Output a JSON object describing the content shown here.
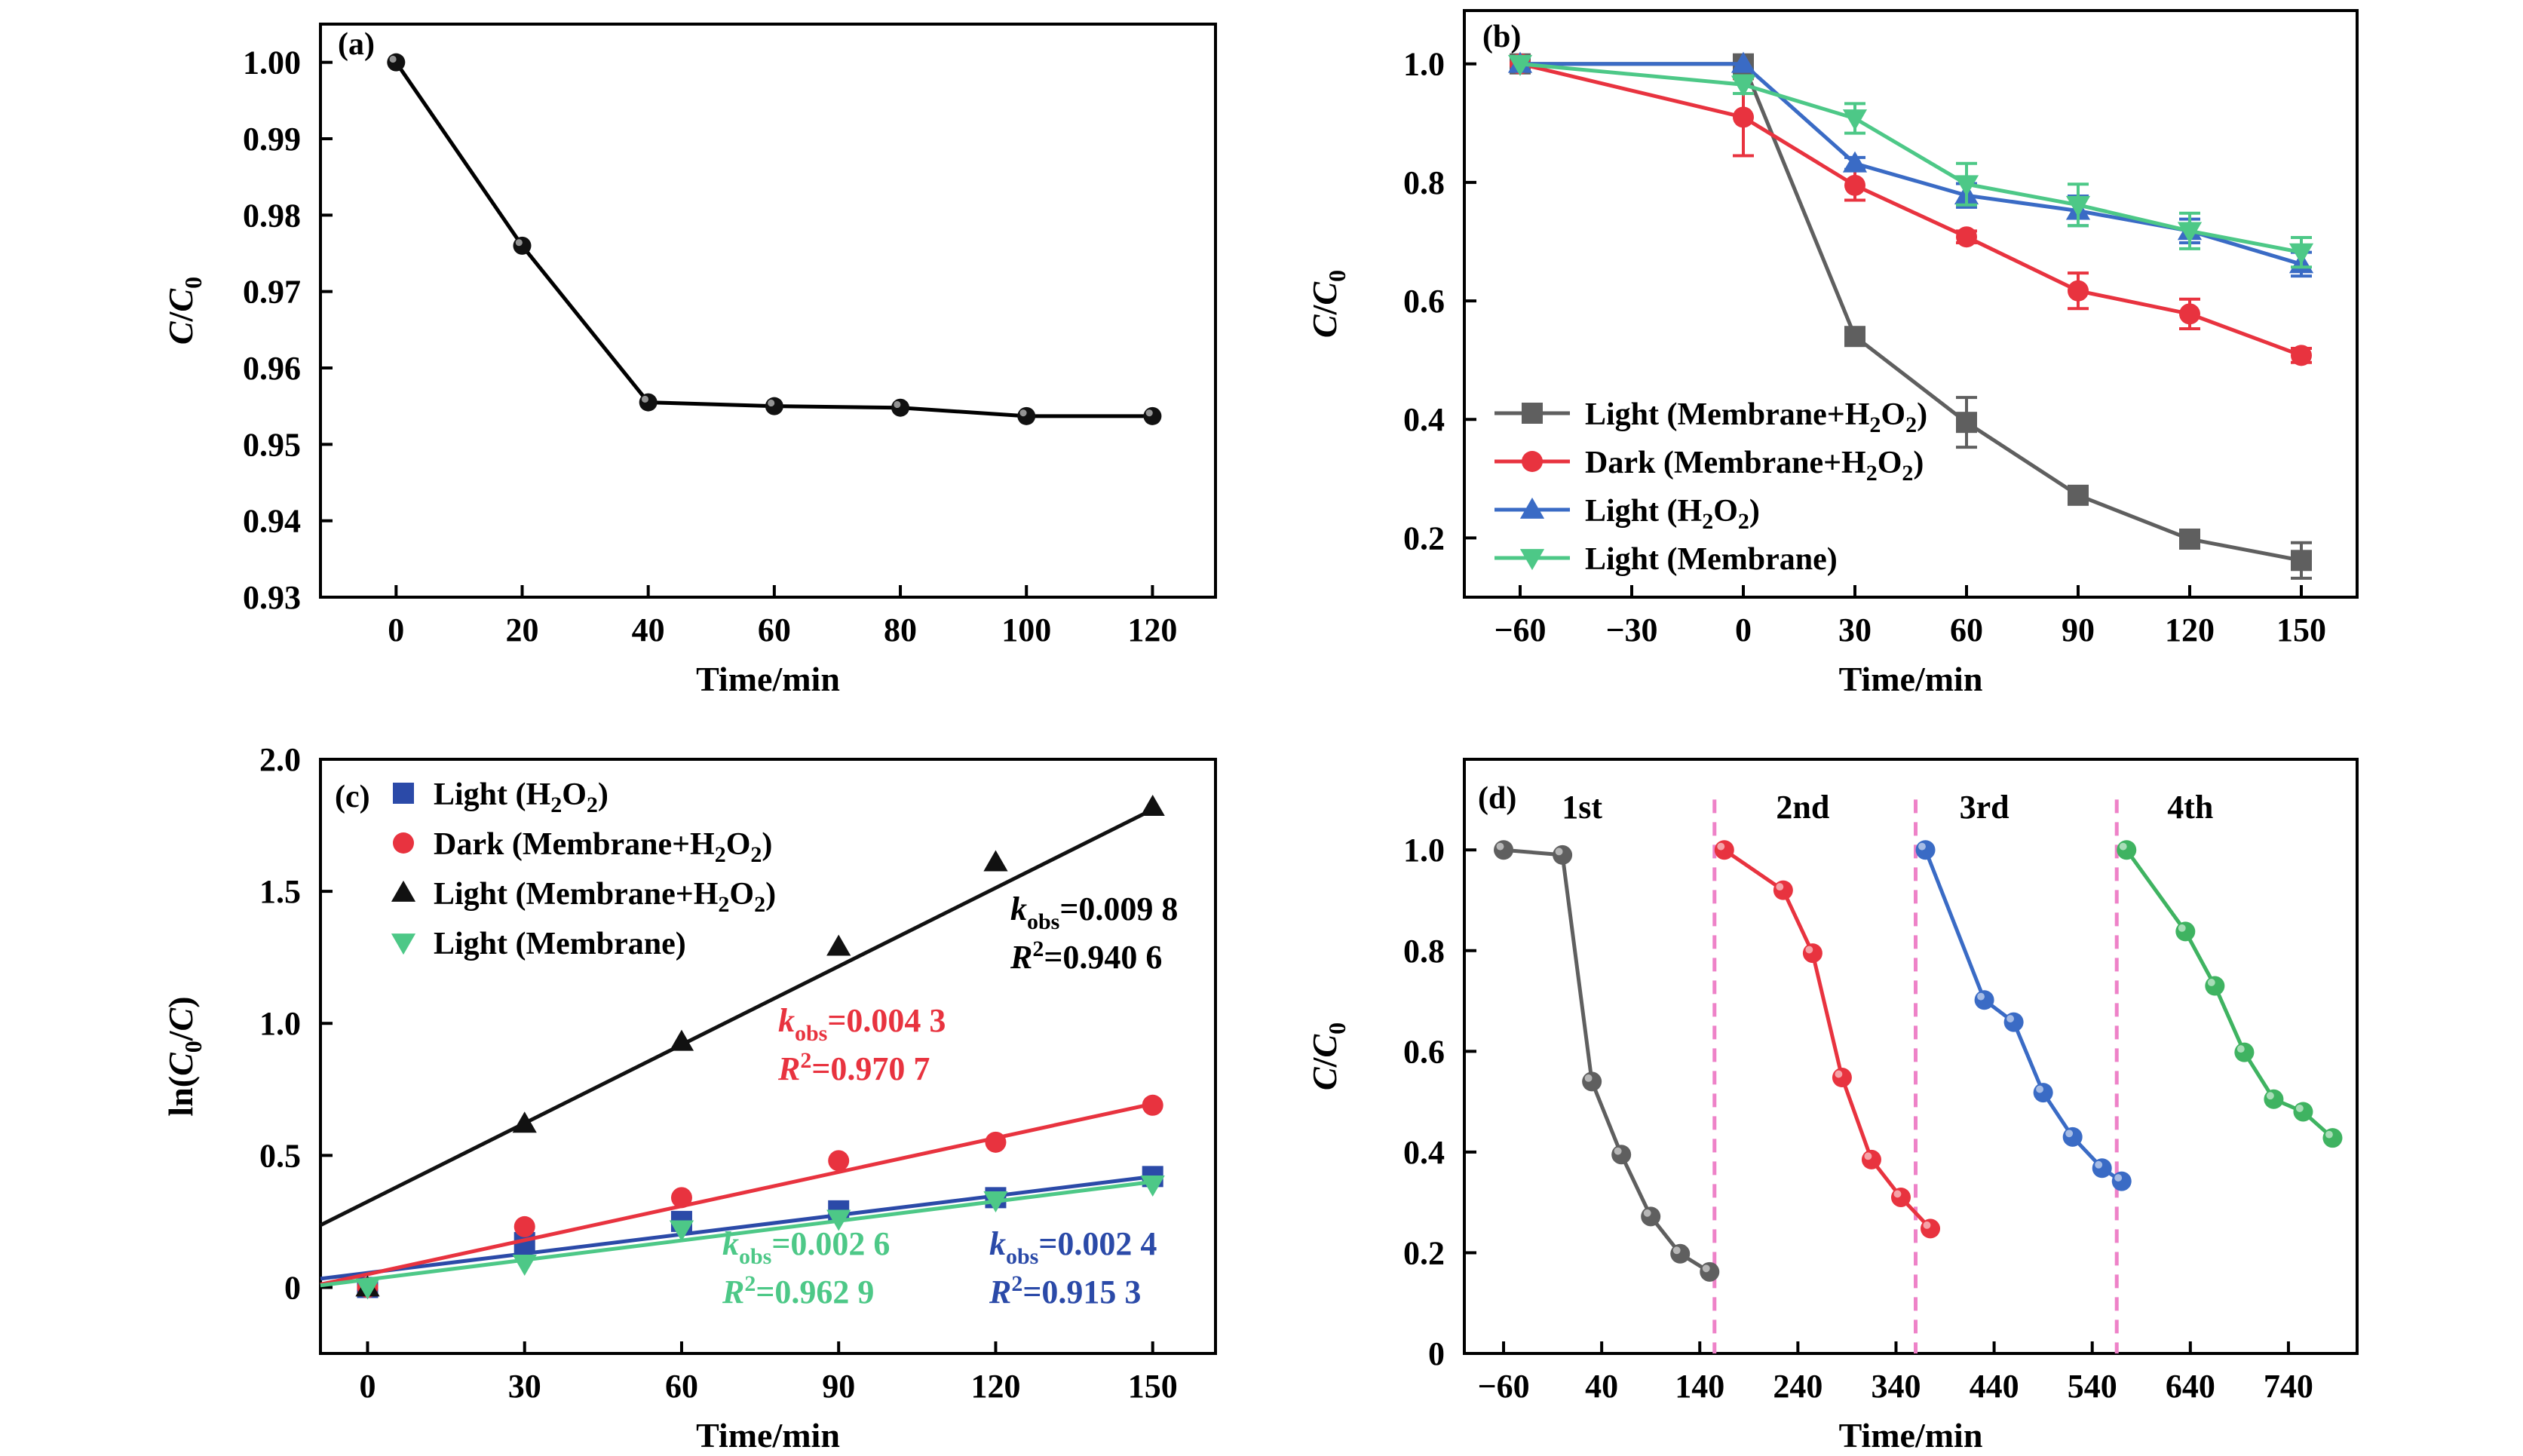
{
  "chart_data": [
    {
      "type": "line",
      "label": "(a)",
      "xlabel": "Time/min",
      "ylabel": "C/C0",
      "xlim": [
        -12,
        130
      ],
      "ylim": [
        0.93,
        1.005
      ],
      "xticks": [
        0,
        20,
        40,
        60,
        80,
        100,
        120
      ],
      "yticks": [
        0.93,
        0.94,
        0.95,
        0.96,
        0.97,
        0.98,
        0.99,
        1.0
      ],
      "ytick_labels": [
        "0.93",
        "0.94",
        "0.95",
        "0.96",
        "0.97",
        "0.98",
        "0.99",
        "1.00"
      ],
      "series": [
        {
          "color": "#000000",
          "x": [
            0,
            20,
            40,
            60,
            80,
            100,
            120
          ],
          "y": [
            1.0,
            0.976,
            0.9555,
            0.955,
            0.9548,
            0.9537,
            0.9537
          ]
        }
      ]
    },
    {
      "type": "line",
      "label": "(b)",
      "xlabel": "Time/min",
      "ylabel": "C/C0",
      "xlim": [
        -75,
        165
      ],
      "ylim": [
        0.1,
        1.09
      ],
      "xticks": [
        -60,
        -30,
        0,
        30,
        60,
        90,
        120,
        150
      ],
      "xtick_labels": [
        "−60",
        "−30",
        "0",
        "30",
        "60",
        "90",
        "120",
        "150"
      ],
      "yticks": [
        0.2,
        0.4,
        0.6,
        0.8,
        1.0
      ],
      "ytick_labels": [
        "0.2",
        "0.4",
        "0.6",
        "0.8",
        "1.0"
      ],
      "legend_position": "bottom-left",
      "x": [
        -60,
        0,
        30,
        60,
        90,
        120,
        150
      ],
      "series": [
        {
          "name": "Light (Membrane+H₂O₂)",
          "color": "#5f5f5f",
          "marker": "square",
          "y": [
            1.0,
            1.0,
            0.54,
            0.395,
            0.272,
            0.198,
            0.162
          ],
          "err": [
            0,
            0,
            0.01,
            0.042,
            0.01,
            0.01,
            0.03
          ]
        },
        {
          "name": "Dark (Membrane+H₂O₂)",
          "color": "#e8333f",
          "marker": "circle",
          "y": [
            1.0,
            0.91,
            0.795,
            0.708,
            0.617,
            0.578,
            0.508
          ],
          "err": [
            0,
            0.065,
            0.025,
            0.01,
            0.03,
            0.025,
            0.012
          ]
        },
        {
          "name": "Light (H₂O₂)",
          "color": "#3a6bc5",
          "marker": "triangle-up",
          "y": [
            1.0,
            1.0,
            0.832,
            0.778,
            0.752,
            0.718,
            0.662
          ],
          "err": [
            0,
            0,
            0.01,
            0.02,
            0.025,
            0.02,
            0.02
          ]
        },
        {
          "name": "Light (Membrane)",
          "color": "#4dc887",
          "marker": "triangle-down",
          "y": [
            1.0,
            0.965,
            0.908,
            0.797,
            0.762,
            0.718,
            0.682
          ],
          "err": [
            0,
            0.015,
            0.025,
            0.035,
            0.035,
            0.03,
            0.025
          ]
        }
      ]
    },
    {
      "type": "scatter",
      "label": "(c)",
      "xlabel": "Time/min",
      "ylabel": "ln(C0/C)",
      "xlim": [
        -9,
        162
      ],
      "ylim": [
        -0.25,
        2.0
      ],
      "xticks": [
        0,
        30,
        60,
        90,
        120,
        150
      ],
      "yticks": [
        0,
        0.5,
        1.0,
        1.5,
        2.0
      ],
      "ytick_labels": [
        "0",
        "0.5",
        "1.0",
        "1.5",
        "2.0"
      ],
      "legend_position": "top-left",
      "x": [
        0,
        30,
        60,
        90,
        120,
        150
      ],
      "series": [
        {
          "name": "Light (H₂O₂)",
          "color": "#2b4aa8",
          "fit_color": "#2b4aa8",
          "marker": "square",
          "y": [
            0.0,
            0.17,
            0.25,
            0.29,
            0.34,
            0.42
          ],
          "fit": [
            0.055,
            0.42
          ],
          "k_obs": "0.002 4",
          "r2": "0.915 3"
        },
        {
          "name": "Dark (Membrane+H₂O₂)",
          "color": "#e8333f",
          "fit_color": "#e8333f",
          "marker": "circle",
          "y": [
            0.0,
            0.23,
            0.34,
            0.48,
            0.55,
            0.69
          ],
          "fit": [
            0.05,
            0.695
          ],
          "k_obs": "0.004 3",
          "r2": "0.970 7"
        },
        {
          "name": "Light (Membrane+H₂O₂)",
          "color": "#111111",
          "fit_color": "#111111",
          "marker": "triangle-up",
          "y": [
            0.0,
            0.62,
            0.93,
            1.29,
            1.61,
            1.82
          ],
          "fit": [
            0.325,
            1.81
          ],
          "k_obs": "0.009 8",
          "r2": "0.940 6"
        },
        {
          "name": "Light (Membrane)",
          "color": "#4dc887",
          "fit_color": "#4dc887",
          "marker": "triangle-down",
          "y": [
            0.0,
            0.09,
            0.22,
            0.26,
            0.33,
            0.39
          ],
          "fit": [
            0.03,
            0.4
          ],
          "k_obs": "0.002 6",
          "r2": "0.962 9"
        }
      ],
      "annotations": {
        "k_prefix": "k",
        "k_sub": "obs",
        "k_eq": "=",
        "r_prefix": "R",
        "r_sup": "2",
        "r_eq": "="
      }
    },
    {
      "type": "line",
      "label": "(d)",
      "xlabel": "Time/min",
      "ylabel": "C/C0",
      "xlim": [
        -100,
        810
      ],
      "ylim": [
        0,
        1.18
      ],
      "xticks": [
        -60,
        40,
        140,
        240,
        340,
        440,
        540,
        640,
        740
      ],
      "xtick_labels": [
        "−60",
        "40",
        "140",
        "240",
        "340",
        "440",
        "540",
        "640",
        "740"
      ],
      "yticks": [
        0,
        0.2,
        0.4,
        0.6,
        0.8,
        1.0
      ],
      "ytick_labels": [
        "0",
        "0.2",
        "0.4",
        "0.6",
        "0.8",
        "1.0"
      ],
      "cycle_dividers": [
        155,
        360,
        565
      ],
      "cycle_labels": [
        {
          "text": "1st",
          "x": 20
        },
        {
          "text": "2nd",
          "x": 245
        },
        {
          "text": "3rd",
          "x": 430
        },
        {
          "text": "4th",
          "x": 640
        }
      ],
      "series": [
        {
          "color": "#5f5f5f",
          "x": [
            -60,
            0,
            30,
            60,
            90,
            120,
            150
          ],
          "y": [
            1.0,
            0.99,
            0.54,
            0.395,
            0.272,
            0.198,
            0.162
          ]
        },
        {
          "color": "#e8333f",
          "x": [
            165,
            225,
            255,
            285,
            315,
            345,
            375
          ],
          "y": [
            1.0,
            0.92,
            0.795,
            0.548,
            0.385,
            0.31,
            0.248
          ]
        },
        {
          "color": "#3a6bc5",
          "x": [
            370,
            430,
            460,
            490,
            520,
            550,
            570
          ],
          "y": [
            1.0,
            0.702,
            0.658,
            0.518,
            0.43,
            0.368,
            0.342
          ]
        },
        {
          "color": "#3fb361",
          "x": [
            575,
            635,
            665,
            695,
            725,
            755,
            785
          ],
          "y": [
            1.0,
            0.838,
            0.73,
            0.598,
            0.505,
            0.48,
            0.428
          ]
        }
      ]
    }
  ]
}
